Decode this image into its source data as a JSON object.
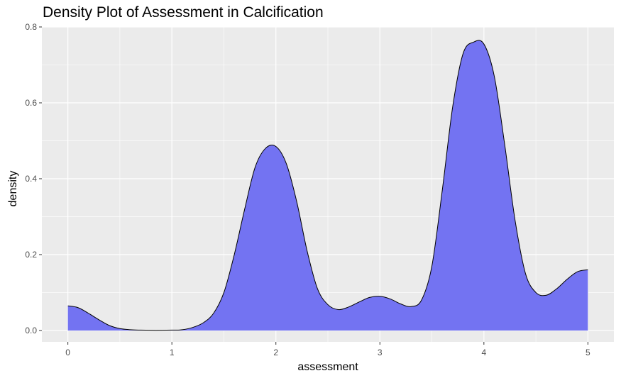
{
  "chart_data": {
    "type": "area",
    "title": "Density Plot of Assessment in Calcification",
    "xlabel": "assessment",
    "ylabel": "density",
    "xlim": [
      -0.25,
      5.25
    ],
    "ylim": [
      -0.03,
      0.8
    ],
    "x_ticks": [
      0,
      1,
      2,
      3,
      4,
      5
    ],
    "x_tick_labels": [
      "0",
      "1",
      "2",
      "3",
      "4",
      "5"
    ],
    "y_ticks": [
      0.0,
      0.2,
      0.4,
      0.6,
      0.8
    ],
    "y_tick_labels": [
      "0.0",
      "0.2",
      "0.4",
      "0.6",
      "0.8"
    ],
    "grid": true,
    "fill_color": "#7373f2",
    "line_color": "#000000",
    "panel_background": "#ebebeb",
    "series": [
      {
        "x": [
          0,
          0.1,
          0.2,
          0.3,
          0.4,
          0.5,
          0.6,
          0.7,
          0.8,
          0.9,
          1.0,
          1.1,
          1.2,
          1.3,
          1.4,
          1.5,
          1.6,
          1.7,
          1.8,
          1.9,
          2.0,
          2.1,
          2.2,
          2.3,
          2.4,
          2.5,
          2.6,
          2.7,
          2.8,
          2.9,
          3.0,
          3.1,
          3.2,
          3.3,
          3.4,
          3.5,
          3.6,
          3.7,
          3.8,
          3.9,
          4.0,
          4.1,
          4.2,
          4.3,
          4.4,
          4.5,
          4.6,
          4.7,
          4.8,
          4.9,
          5.0
        ],
        "y": [
          0.065,
          0.06,
          0.045,
          0.028,
          0.013,
          0.005,
          0.002,
          0.001,
          0.0005,
          0.0005,
          0.001,
          0.002,
          0.008,
          0.02,
          0.045,
          0.1,
          0.2,
          0.32,
          0.43,
          0.48,
          0.485,
          0.44,
          0.34,
          0.21,
          0.11,
          0.068,
          0.055,
          0.062,
          0.075,
          0.087,
          0.09,
          0.083,
          0.07,
          0.063,
          0.08,
          0.17,
          0.37,
          0.59,
          0.73,
          0.76,
          0.755,
          0.67,
          0.49,
          0.29,
          0.15,
          0.1,
          0.093,
          0.11,
          0.135,
          0.155,
          0.16
        ]
      }
    ]
  }
}
